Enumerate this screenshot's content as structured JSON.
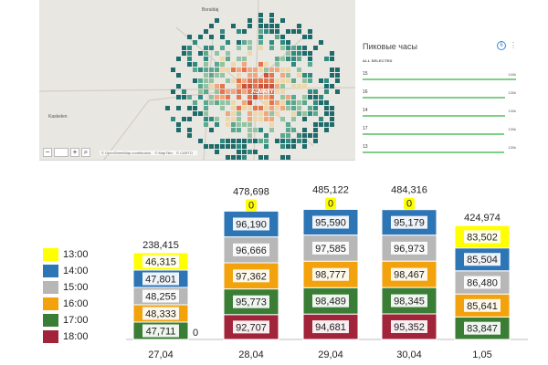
{
  "map": {
    "places": [
      {
        "name": "Boraldaj",
        "x": 178,
        "y": 8
      },
      {
        "name": "ALMATY",
        "x": 232,
        "y": 98
      },
      {
        "name": "Kaskelen",
        "x": 10,
        "y": 125
      }
    ],
    "zoom_in": "+",
    "zoom_out": "−",
    "attribution": [
      "© OpenStreetMap contributors",
      "© MapTiler",
      "© CARTO"
    ],
    "cell_colors": [
      "#1f6b6b",
      "#2f8a7f",
      "#5aa88f",
      "#93c3a2",
      "#f0d7a8",
      "#f2a67c",
      "#e4764f",
      "#cf5137"
    ]
  },
  "peak_panel": {
    "title": "Пиковые часы",
    "badge": "6",
    "menu": "⋮",
    "subtitle": "ALL SELECTED",
    "rows": [
      {
        "label": "15",
        "value": "140k",
        "fill": 1.0
      },
      {
        "label": "16",
        "value": "130k",
        "fill": 0.93
      },
      {
        "label": "14",
        "value": "130k",
        "fill": 0.93
      },
      {
        "label": "17",
        "value": "130k",
        "fill": 0.92
      },
      {
        "label": "13",
        "value": "130k",
        "fill": 0.92
      }
    ]
  },
  "legend": [
    {
      "label": "13:00",
      "color": "#ffff00"
    },
    {
      "label": "14:00",
      "color": "#2e75b6"
    },
    {
      "label": "15:00",
      "color": "#b7b7b7"
    },
    {
      "label": "16:00",
      "color": "#f2a20c"
    },
    {
      "label": "17:00",
      "color": "#3a7d35"
    },
    {
      "label": "18:00",
      "color": "#a1243b"
    }
  ],
  "chart_data": {
    "type": "bar",
    "stacked": true,
    "categories": [
      "27,04",
      "28,04",
      "29,04",
      "30,04",
      "1,05"
    ],
    "totals": [
      "238,415",
      "478,698",
      "485,122",
      "484,316",
      "424,974"
    ],
    "series": [
      {
        "name": "18:00",
        "color": "#a1243b",
        "values": [
          0,
          92707,
          94681,
          95352,
          0
        ],
        "labels": [
          "0",
          "92,707",
          "94,681",
          "95,352",
          "0"
        ]
      },
      {
        "name": "17:00",
        "color": "#3a7d35",
        "values": [
          47711,
          95773,
          98489,
          98345,
          83847
        ],
        "labels": [
          "47,711",
          "95,773",
          "98,489",
          "98,345",
          "83,847"
        ]
      },
      {
        "name": "16:00",
        "color": "#f2a20c",
        "values": [
          48333,
          97362,
          98777,
          98467,
          85641
        ],
        "labels": [
          "48,333",
          "97,362",
          "98,777",
          "98,467",
          "85,641"
        ]
      },
      {
        "name": "15:00",
        "color": "#b7b7b7",
        "values": [
          48255,
          96666,
          97585,
          96973,
          86480
        ],
        "labels": [
          "48,255",
          "96,666",
          "97,585",
          "96,973",
          "86,480"
        ]
      },
      {
        "name": "14:00",
        "color": "#2e75b6",
        "values": [
          47801,
          96190,
          95590,
          95179,
          85504
        ],
        "labels": [
          "47,801",
          "96,190",
          "95,590",
          "95,179",
          "85,504"
        ]
      },
      {
        "name": "13:00",
        "color": "#ffff00",
        "values": [
          46315,
          0,
          0,
          0,
          83502
        ],
        "labels": [
          "46,315",
          "0",
          "0",
          "0",
          "83,502"
        ]
      }
    ]
  }
}
